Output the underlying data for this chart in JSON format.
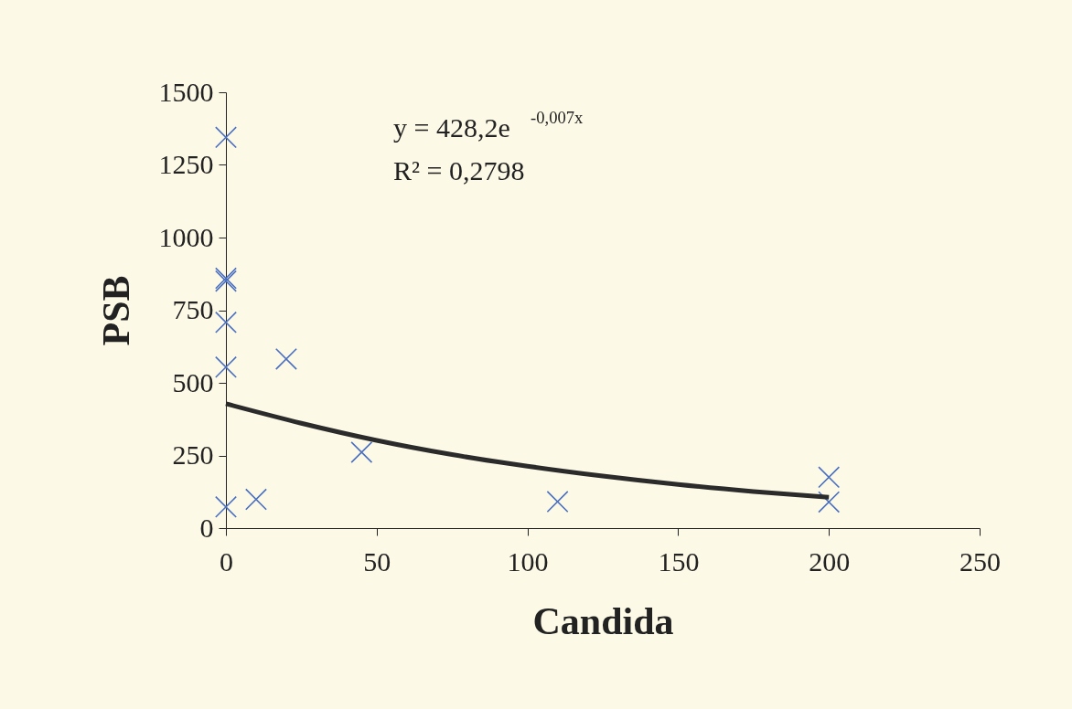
{
  "chart_data": {
    "type": "scatter",
    "xlabel": "Candida",
    "ylabel": "PSB",
    "xlim": [
      0,
      250
    ],
    "xticks": [
      0,
      50,
      100,
      150,
      200,
      250
    ],
    "ylim": [
      0,
      1500
    ],
    "yticks": [
      0,
      250,
      500,
      750,
      1000,
      1250,
      1500
    ],
    "grid": false,
    "marker": "cross",
    "series": [
      {
        "color": "#4a6fc0",
        "x": [
          0,
          0,
          0,
          0,
          0,
          0,
          20,
          10,
          45,
          110,
          200,
          200
        ],
        "values": [
          1345,
          860,
          850,
          708,
          554,
          73,
          582,
          99,
          261,
          91,
          175,
          90
        ]
      },
      {
        "type": "line",
        "color": "#2b2b2b",
        "marker": "none",
        "x": [
          0,
          25,
          50,
          75,
          100,
          125,
          150,
          175,
          200
        ],
        "values": [
          428,
          361,
          302,
          253,
          213,
          179,
          150,
          126,
          106
        ]
      }
    ],
    "annotations": [
      "y = 428,2e$^{-0,007x}$",
      "R² = 0,2798"
    ]
  }
}
